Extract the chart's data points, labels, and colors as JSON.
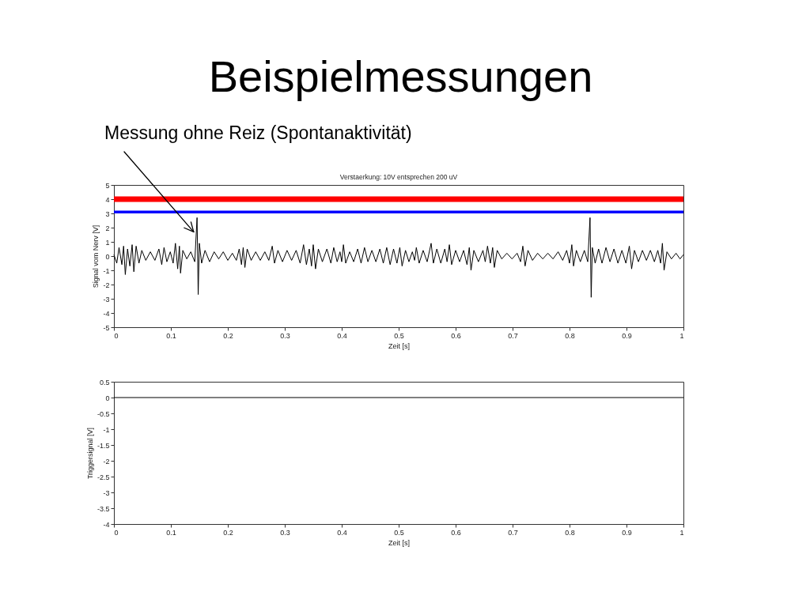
{
  "chart_data": [
    {
      "type": "line",
      "title": "Beispielmessungen",
      "subtitle": "Verstaerkung: 10V entsprechen 200 uV",
      "xlabel": "Zeit [s]",
      "ylabel": "Signal vom Nerv [V]",
      "annotations": [
        {
          "text": "Messung ohne Reiz (Spontanaktivität)",
          "x": 0.14,
          "y": 1.7
        }
      ],
      "x": [
        0,
        0.005,
        0.009,
        0.014,
        0.017,
        0.02,
        0.024,
        0.028,
        0.032,
        0.035,
        0.039,
        0.044,
        0.049,
        0.056,
        0.064,
        0.072,
        0.079,
        0.084,
        0.088,
        0.093,
        0.099,
        0.104,
        0.108,
        0.112,
        0.115,
        0.117,
        0.121,
        0.128,
        0.135,
        0.142,
        0.146,
        0.148,
        0.15,
        0.154,
        0.16,
        0.168,
        0.176,
        0.184,
        0.192,
        0.2,
        0.208,
        0.215,
        0.22,
        0.224,
        0.227,
        0.23,
        0.234,
        0.241,
        0.249,
        0.257,
        0.265,
        0.272,
        0.278,
        0.282,
        0.288,
        0.296,
        0.304,
        0.312,
        0.32,
        0.327,
        0.333,
        0.338,
        0.343,
        0.347,
        0.35,
        0.354,
        0.359,
        0.366,
        0.374,
        0.381,
        0.386,
        0.392,
        0.397,
        0.4,
        0.403,
        0.407,
        0.414,
        0.421,
        0.428,
        0.434,
        0.44,
        0.446,
        0.453,
        0.46,
        0.467,
        0.473,
        0.479,
        0.485,
        0.491,
        0.497,
        0.502,
        0.506,
        0.512,
        0.518,
        0.524,
        0.528,
        0.531,
        0.536,
        0.543,
        0.55,
        0.557,
        0.561,
        0.567,
        0.574,
        0.581,
        0.585,
        0.589,
        0.593,
        0.6,
        0.607,
        0.614,
        0.62,
        0.624,
        0.627,
        0.632,
        0.64,
        0.648,
        0.652,
        0.656,
        0.661,
        0.665,
        0.668,
        0.673,
        0.681,
        0.69,
        0.699,
        0.708,
        0.714,
        0.718,
        0.722,
        0.727,
        0.735,
        0.744,
        0.753,
        0.762,
        0.771,
        0.78,
        0.788,
        0.795,
        0.8,
        0.804,
        0.807,
        0.812,
        0.819,
        0.826,
        0.832,
        0.836,
        0.838,
        0.84,
        0.845,
        0.851,
        0.857,
        0.864,
        0.871,
        0.878,
        0.885,
        0.892,
        0.899,
        0.905,
        0.909,
        0.914,
        0.921,
        0.928,
        0.935,
        0.942,
        0.949,
        0.955,
        0.96,
        0.963,
        0.966,
        0.971,
        0.979,
        0.987,
        0.994,
        1
      ],
      "series": [
        {
          "color": "#000000",
          "values": [
            0.1,
            -0.5,
            0.6,
            -0.6,
            0.7,
            -1.3,
            0.5,
            -0.7,
            0.8,
            -1.1,
            0.7,
            -0.5,
            0.4,
            -0.3,
            0.3,
            -0.3,
            0.5,
            -0.6,
            0.6,
            -0.4,
            0.3,
            -0.5,
            0.9,
            -0.9,
            0.7,
            -1.2,
            0.4,
            -0.2,
            0.3,
            -0.4,
            2.7,
            -2.7,
            0.9,
            -0.5,
            0.4,
            -0.4,
            0.3,
            -0.2,
            0.3,
            -0.3,
            0.2,
            -0.3,
            0.5,
            -0.6,
            0.6,
            -0.8,
            0.5,
            -0.3,
            0.3,
            -0.3,
            0.3,
            -0.3,
            0.7,
            -0.5,
            0.4,
            -0.4,
            0.4,
            -0.3,
            0.4,
            -0.5,
            0.8,
            -0.6,
            0.5,
            -0.7,
            0.8,
            -0.9,
            0.5,
            -0.4,
            0.5,
            -0.5,
            0.6,
            -0.4,
            0.3,
            -0.4,
            0.8,
            -0.5,
            0.3,
            -0.4,
            0.5,
            -0.5,
            0.6,
            -0.4,
            0.4,
            -0.4,
            0.5,
            -0.5,
            0.6,
            -0.6,
            0.5,
            -0.5,
            0.6,
            -0.7,
            0.4,
            -0.4,
            0.3,
            -0.3,
            0.6,
            -0.5,
            0.4,
            -0.4,
            0.9,
            -0.5,
            0.5,
            -0.5,
            0.5,
            -0.4,
            0.8,
            -0.6,
            0.4,
            -0.4,
            0.4,
            -0.6,
            0.6,
            -1.0,
            0.4,
            -0.4,
            0.4,
            -0.4,
            0.7,
            -0.5,
            0.6,
            -0.8,
            0.4,
            -0.2,
            0.2,
            -0.2,
            0.2,
            -0.4,
            0.7,
            -0.7,
            0.4,
            -0.3,
            0.2,
            -0.2,
            0.2,
            -0.2,
            0.3,
            -0.3,
            0.4,
            -0.5,
            0.8,
            -0.7,
            0.4,
            -0.4,
            0.4,
            -0.4,
            2.7,
            -2.9,
            0.6,
            -0.5,
            0.5,
            -0.5,
            0.6,
            -0.4,
            0.5,
            -0.5,
            0.4,
            -0.5,
            0.7,
            -0.9,
            0.4,
            -0.4,
            0.4,
            -0.3,
            0.4,
            -0.4,
            0.4,
            -0.5,
            0.9,
            -1.0,
            0.3,
            -0.2,
            0.2,
            -0.2,
            0.1
          ]
        }
      ],
      "xlim": [
        0,
        1
      ],
      "ylim": [
        -5,
        5
      ],
      "xticks": [
        0,
        0.1,
        0.2,
        0.3,
        0.4,
        0.5,
        0.6,
        0.7,
        0.8,
        0.9,
        1
      ],
      "yticks": [
        -5,
        -4,
        -3,
        -2,
        -1,
        0,
        1,
        2,
        3,
        4,
        5
      ],
      "ref_lines": [
        {
          "axis": "y",
          "value": 4,
          "color": "#ff0000"
        },
        {
          "axis": "y",
          "value": 3.1,
          "color": "#0000ff"
        }
      ],
      "grid": false
    },
    {
      "type": "line",
      "xlabel": "Zeit [s]",
      "ylabel": "Triggersignal [V]",
      "x": [
        0,
        1
      ],
      "series": [
        {
          "color": "#000000",
          "values": [
            0,
            0
          ]
        }
      ],
      "xlim": [
        0,
        1
      ],
      "ylim": [
        -4,
        0.5
      ],
      "xticks": [
        0,
        0.1,
        0.2,
        0.3,
        0.4,
        0.5,
        0.6,
        0.7,
        0.8,
        0.9,
        1
      ],
      "yticks": [
        -4,
        -3.5,
        -3,
        -2.5,
        -2,
        -1.5,
        -1,
        -0.5,
        0,
        0.5
      ],
      "grid": false
    }
  ]
}
